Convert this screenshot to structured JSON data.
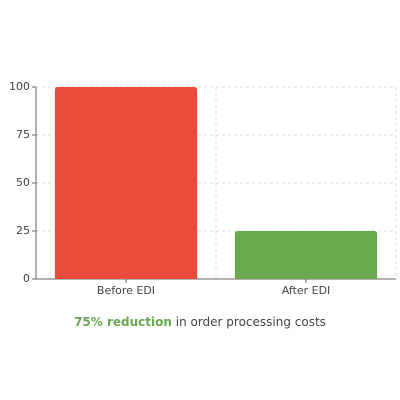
{
  "chart_data": {
    "type": "bar",
    "categories": [
      "Before EDI",
      "After EDI"
    ],
    "values": [
      100,
      25
    ],
    "colors": [
      "#e74c3c",
      "#6aa84f"
    ],
    "ylim": [
      0,
      100
    ],
    "yticks": [
      0,
      25,
      50,
      75,
      100
    ],
    "grid": true,
    "annotation": {
      "highlight": "75% reduction",
      "text": "in order processing costs"
    }
  }
}
